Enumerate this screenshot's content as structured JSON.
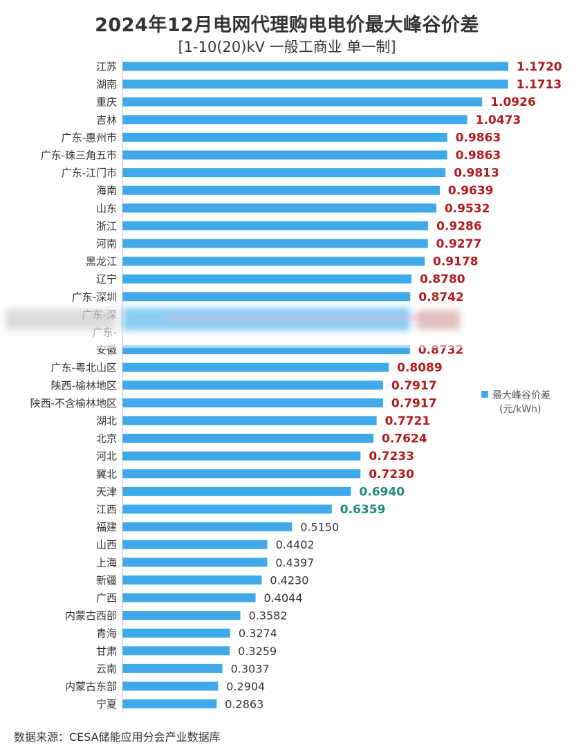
{
  "chart_data": {
    "type": "bar",
    "orientation": "horizontal",
    "title": "2024年12月电网代理购电电价最大峰谷价差",
    "subtitle": "[1-10(20)kV 一般工商业 单一制]",
    "source": "数据来源：CESA储能应用分会产业数据库",
    "legend": {
      "label": "最大峰谷价差",
      "unit": "(元/kWh)",
      "position": "right"
    },
    "categories": [
      "江苏",
      "湖南",
      "重庆",
      "吉林",
      "广东-惠州市",
      "广东-珠三角五市",
      "广东-江门市",
      "海南",
      "山东",
      "浙江",
      "河南",
      "黑龙江",
      "辽宁",
      "广东-深圳",
      "广东-深",
      "广东-",
      "安徽",
      "广东-粤北山区",
      "陕西-榆林地区",
      "陕西-不含榆林地区",
      "湖北",
      "北京",
      "河北",
      "冀北",
      "天津",
      "江西",
      "福建",
      "山西",
      "上海",
      "新疆",
      "广西",
      "内蒙古西部",
      "青海",
      "甘肃",
      "云南",
      "内蒙古东部",
      "宁夏"
    ],
    "values": [
      1.172,
      1.1713,
      1.0926,
      1.0473,
      0.9863,
      0.9863,
      0.9813,
      0.9639,
      0.9532,
      0.9286,
      0.9277,
      0.9178,
      0.878,
      0.8742,
      null,
      null,
      0.8732,
      0.8089,
      0.7917,
      0.7917,
      0.7721,
      0.7624,
      0.7233,
      0.723,
      0.694,
      0.6359,
      0.515,
      0.4402,
      0.4397,
      0.423,
      0.4044,
      0.3582,
      0.3274,
      0.3259,
      0.3037,
      0.2904,
      0.2863
    ],
    "value_labels": [
      "1.1720",
      "1.1713",
      "1.0926",
      "1.0473",
      "0.9863",
      "0.9863",
      "0.9813",
      "0.9639",
      "0.9532",
      "0.9286",
      "0.9277",
      "0.9178",
      "0.8780",
      "0.8742",
      "",
      "",
      "0.8732",
      "0.8089",
      "0.7917",
      "0.7917",
      "0.7721",
      "0.7624",
      "0.7233",
      "0.7230",
      "0.6940",
      "0.6359",
      "0.5150",
      "0.4402",
      "0.4397",
      "0.4230",
      "0.4044",
      "0.3582",
      "0.3274",
      "0.3259",
      "0.3037",
      "0.2904",
      "0.2863"
    ],
    "obscured_estimate": 0.874,
    "xlim": [
      0,
      1.172
    ],
    "grid": false,
    "colors": {
      "bar": "#3fa9ea",
      "label_high": "#b31b1b",
      "label_mid": "#1e8a7e",
      "label_low": "#333333",
      "axis": "#bfbfbf"
    },
    "label_thresholds": {
      "high": 0.7,
      "mid": 0.6
    }
  }
}
